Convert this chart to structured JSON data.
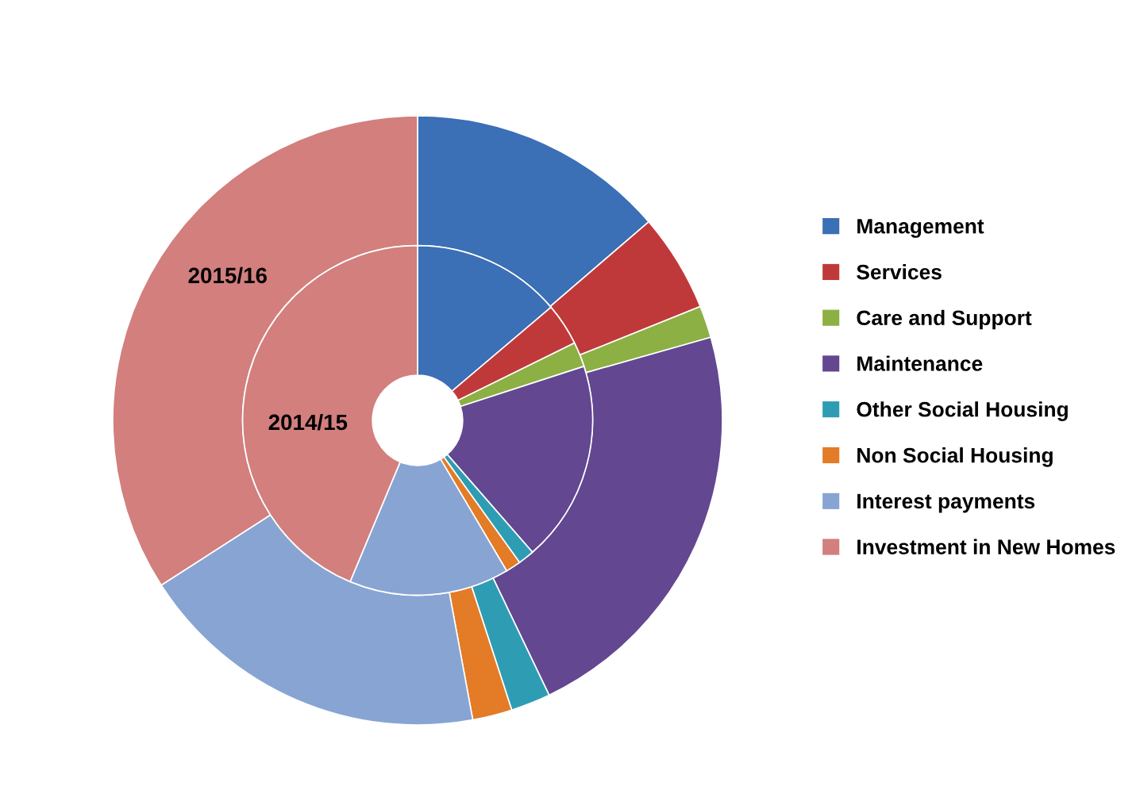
{
  "chart_data": {
    "type": "donut",
    "categories": [
      "Management",
      "Services",
      "Care and Support",
      "Maintenance",
      "Other Social Housing",
      "Non Social Housing",
      "Interest payments",
      "Investment in New Homes"
    ],
    "colors": [
      "#3b6fb6",
      "#c0393a",
      "#8cb043",
      "#634790",
      "#2e9db3",
      "#e37b27",
      "#88a4d3",
      "#d27f7d"
    ],
    "series": [
      {
        "name": "2015/16",
        "values": [
          13.7,
          5.2,
          1.7,
          22.3,
          2.1,
          2.1,
          18.8,
          34.1
        ]
      },
      {
        "name": "2014/15",
        "values": [
          13.8,
          3.9,
          2.3,
          18.6,
          1.5,
          1.4,
          14.8,
          43.7
        ]
      }
    ],
    "legend": "right"
  }
}
